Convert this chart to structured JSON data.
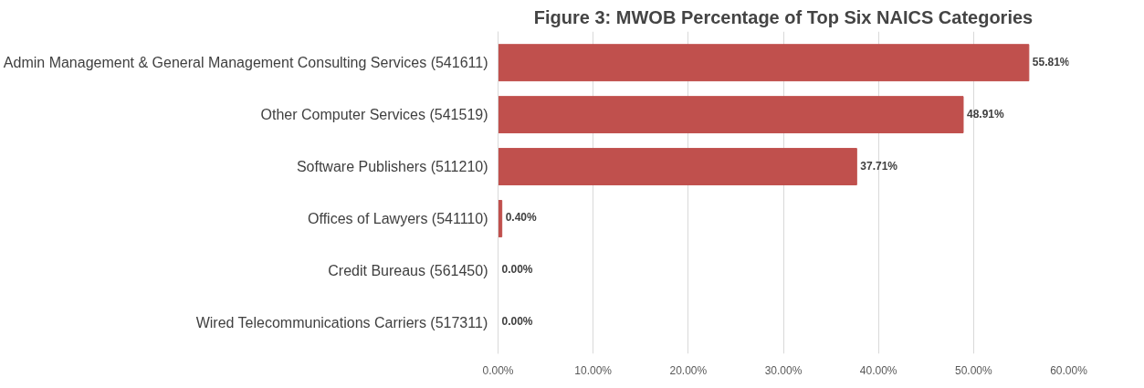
{
  "chart_data": {
    "type": "bar",
    "orientation": "horizontal",
    "title": "Figure 3: MWOB Percentage of Top Six NAICS Categories",
    "categories": [
      "Admin Management & General Management Consulting Services (541611)",
      "Other Computer Services (541519)",
      "Software Publishers (511210)",
      "Offices of Lawyers (541110)",
      "Credit Bureaus (561450)",
      "Wired Telecommunications Carriers (517311)"
    ],
    "values": [
      55.81,
      48.91,
      37.71,
      0.4,
      0,
      0
    ],
    "value_labels": [
      "55.81%",
      "48.91%",
      "37.71%",
      "0.40%",
      "0.00%",
      "0.00%"
    ],
    "color": "#c0504d",
    "xlim": [
      0,
      60
    ],
    "xticks": [
      {
        "value": 0,
        "label": "0.00%"
      },
      {
        "value": 10,
        "label": "10.00%"
      },
      {
        "value": 20,
        "label": "20.00%"
      },
      {
        "value": 30,
        "label": "30.00%"
      },
      {
        "value": 40,
        "label": "40.00%"
      },
      {
        "value": 50,
        "label": "50.00%"
      },
      {
        "value": 60,
        "label": "60.00%"
      }
    ],
    "grid": "x"
  }
}
